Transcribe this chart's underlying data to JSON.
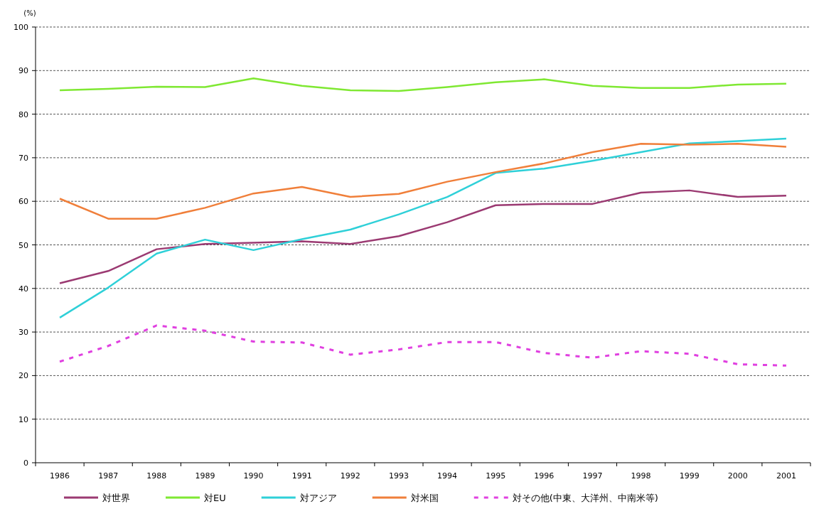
{
  "chart_data": {
    "type": "line",
    "ylabel": "(%)",
    "categories": [
      "1986",
      "1987",
      "1988",
      "1989",
      "1990",
      "1991",
      "1992",
      "1993",
      "1994",
      "1995",
      "1996",
      "1997",
      "1998",
      "1999",
      "2000",
      "2001"
    ],
    "ylim": [
      0,
      100
    ],
    "yticks": [
      0,
      10,
      20,
      30,
      40,
      50,
      60,
      70,
      80,
      90,
      100
    ],
    "grid": "y",
    "legend": "bottom",
    "marker": "none",
    "series": [
      {
        "name": "対世界",
        "color": "#9b3a72",
        "line_style": "solid",
        "values": [
          41.2,
          44,
          49,
          50.2,
          50.5,
          50.8,
          50.2,
          52,
          55.2,
          59.1,
          59.4,
          59.4,
          62,
          62.5,
          61,
          61.3
        ]
      },
      {
        "name": "対EU",
        "color": "#7fe832",
        "line_style": "solid",
        "values": [
          85.5,
          85.8,
          86.3,
          86.2,
          88.2,
          86.5,
          85.5,
          85.3,
          86.2,
          87.3,
          88,
          86.5,
          86,
          86,
          86.8,
          87
        ]
      },
      {
        "name": "対アジア",
        "color": "#2fd0d8",
        "line_style": "solid",
        "values": [
          33.3,
          40.2,
          48,
          51.2,
          48.8,
          51.3,
          53.5,
          57,
          61,
          66.5,
          67.5,
          69.3,
          71.3,
          73.3,
          73.8,
          74.4
        ]
      },
      {
        "name": "対米国",
        "color": "#f07f3a",
        "line_style": "solid",
        "values": [
          60.6,
          56,
          56,
          58.5,
          61.8,
          63.3,
          61,
          61.7,
          64.5,
          66.7,
          68.7,
          71.3,
          73.2,
          73,
          73.2,
          72.5
        ]
      },
      {
        "name": "対その他(中東、大洋州、中南米等)",
        "color": "#e040e0",
        "line_style": "dashed",
        "values": [
          23.2,
          26.8,
          31.5,
          30.3,
          27.8,
          27.6,
          24.8,
          26,
          27.7,
          27.7,
          25.2,
          24.1,
          25.6,
          25,
          22.6,
          22.3
        ]
      }
    ]
  }
}
